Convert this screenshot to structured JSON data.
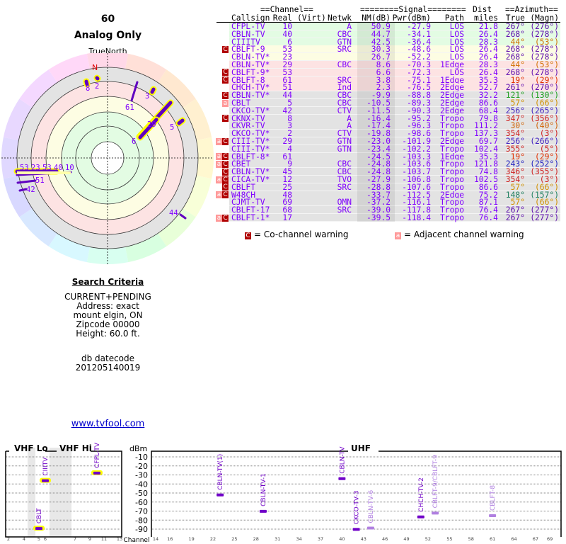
{
  "header": {
    "title": "60",
    "subtitle": "Analog Only",
    "truenorth": "TrueNorth",
    "north": "N"
  },
  "search": {
    "heading": "Search Criteria",
    "lines": [
      "CURRENT+PENDING",
      "Address: exact",
      "mount elgin, ON",
      "Zipcode 00000",
      "Height: 60.0 ft."
    ],
    "db_label": "db datecode",
    "db_value": "201205140019"
  },
  "link": "www.tvfool.com",
  "table": {
    "group_headers": {
      "channel": "==Channel==",
      "signal": "========Signal========",
      "dist": "Dist",
      "azimuth": "==Azimuth=="
    },
    "columns": [
      "Callsign",
      "Real",
      "(Virt)",
      "Netwk",
      "NM(dB)",
      "Pwr(dBm)",
      "Path",
      "miles",
      "True",
      "(Magn)"
    ],
    "rows": [
      {
        "call": "CFPL-TV",
        "real": "10",
        "net": "A",
        "nm": "50.9",
        "pwr": "-27.9",
        "path": "LOS",
        "dist": "21.8",
        "true": "267°",
        "magn": "(276°)",
        "band": "green",
        "az": "#6010b0",
        "warn": ""
      },
      {
        "call": "CBLN-TV",
        "real": "40",
        "net": "CBC",
        "nm": "44.7",
        "pwr": "-34.1",
        "path": "LOS",
        "dist": "26.4",
        "true": "268°",
        "magn": "(278°)",
        "band": "green",
        "az": "#6010b0",
        "warn": ""
      },
      {
        "call": "CIIITV",
        "real": "6",
        "net": "GTN",
        "nm": "42.5",
        "pwr": "-36.4",
        "path": "LOS",
        "dist": "28.3",
        "true": "44°",
        "magn": "(53°)",
        "band": "green",
        "az": "#d07000",
        "warn": ""
      },
      {
        "call": "CBLFT-9",
        "real": "53",
        "net": "SRC",
        "nm": "30.3",
        "pwr": "-48.6",
        "path": "LOS",
        "dist": "26.4",
        "true": "268°",
        "magn": "(278°)",
        "band": "yellow",
        "az": "#6010b0",
        "warn": "C"
      },
      {
        "call": "CBLN-TV*",
        "real": "23",
        "net": "",
        "nm": "26.7",
        "pwr": "-52.2",
        "path": "LOS",
        "dist": "26.4",
        "true": "268°",
        "magn": "(278°)",
        "band": "yellow",
        "az": "#6010b0",
        "warn": ""
      },
      {
        "call": "CBLN-TV*",
        "real": "29",
        "net": "CBC",
        "nm": "8.6",
        "pwr": "-70.3",
        "path": "1Edge",
        "dist": "28.3",
        "true": "44°",
        "magn": "(53°)",
        "band": "pink",
        "az": "#d07000",
        "warn": ""
      },
      {
        "call": "CBLFT-9*",
        "real": "53",
        "net": "",
        "nm": "6.6",
        "pwr": "-72.3",
        "path": "LOS",
        "dist": "26.4",
        "true": "268°",
        "magn": "(278°)",
        "band": "pink",
        "az": "#6010b0",
        "warn": "C"
      },
      {
        "call": "CBLFT-8",
        "real": "61",
        "net": "SRC",
        "nm": "3.8",
        "pwr": "-75.1",
        "path": "1Edge",
        "dist": "35.3",
        "true": "19°",
        "magn": "(29°)",
        "band": "pink",
        "az": "#e03000",
        "warn": "C"
      },
      {
        "call": "CHCH-TV*",
        "real": "51",
        "net": "Ind",
        "nm": "2.3",
        "pwr": "-76.5",
        "path": "2Edge",
        "dist": "52.7",
        "true": "261°",
        "magn": "(270°)",
        "band": "pink",
        "az": "#6010b0",
        "warn": ""
      },
      {
        "call": "CBLN-TV*",
        "real": "44",
        "net": "CBC",
        "nm": "-9.9",
        "pwr": "-88.8",
        "path": "2Edge",
        "dist": "32.2",
        "true": "121°",
        "magn": "(130°)",
        "band": "grey",
        "az": "#20a020",
        "warn": "C"
      },
      {
        "call": "CBLT",
        "real": "5",
        "net": "CBC",
        "nm": "-10.5",
        "pwr": "-89.3",
        "path": "2Edge",
        "dist": "86.6",
        "true": "57°",
        "magn": "(66°)",
        "band": "grey",
        "az": "#d09000",
        "warn": "a"
      },
      {
        "call": "CKCO-TV*",
        "real": "42",
        "net": "CTV",
        "nm": "-11.5",
        "pwr": "-90.3",
        "path": "2Edge",
        "dist": "68.4",
        "true": "256°",
        "magn": "(265°)",
        "band": "grey",
        "az": "#4020c0",
        "warn": ""
      },
      {
        "call": "CKNX-TV",
        "real": "8",
        "net": "A",
        "nm": "-16.4",
        "pwr": "-95.2",
        "path": "Tropo",
        "dist": "79.8",
        "true": "347°",
        "magn": "(356°)",
        "band": "grey",
        "az": "#d02020",
        "warn": "C"
      },
      {
        "call": "CKVR-TV",
        "real": "3",
        "net": "A",
        "nm": "-17.4",
        "pwr": "-96.3",
        "path": "Tropo",
        "dist": "111.2",
        "true": "30°",
        "magn": "(40°)",
        "band": "grey",
        "az": "#d06000",
        "warn": ""
      },
      {
        "call": "CKCO-TV*",
        "real": "2",
        "net": "CTV",
        "nm": "-19.8",
        "pwr": "-98.6",
        "path": "Tropo",
        "dist": "137.3",
        "true": "354°",
        "magn": "(3°)",
        "band": "grey",
        "az": "#d02020",
        "warn": ""
      },
      {
        "call": "CIII-TV*",
        "real": "29",
        "net": "GTN",
        "nm": "-23.0",
        "pwr": "-101.9",
        "path": "2Edge",
        "dist": "69.7",
        "true": "256°",
        "magn": "(266°)",
        "band": "grey",
        "az": "#4020c0",
        "warn": "aC"
      },
      {
        "call": "CIII-TV*",
        "real": "4",
        "net": "GTN",
        "nm": "-23.4",
        "pwr": "-102.2",
        "path": "Tropo",
        "dist": "102.4",
        "true": "355°",
        "magn": "(5°)",
        "band": "grey",
        "az": "#d02020",
        "warn": ""
      },
      {
        "call": "CBLFT-8*",
        "real": "61",
        "net": "",
        "nm": "-24.5",
        "pwr": "-103.3",
        "path": "1Edge",
        "dist": "35.3",
        "true": "19°",
        "magn": "(29°)",
        "band": "grey",
        "az": "#e03000",
        "warn": "aC"
      },
      {
        "call": "CBET",
        "real": "9",
        "net": "CBC",
        "nm": "-24.8",
        "pwr": "-103.6",
        "path": "Tropo",
        "dist": "121.8",
        "true": "243°",
        "magn": "(252°)",
        "band": "grey",
        "az": "#2020c0",
        "warn": "aC"
      },
      {
        "call": "CBLN-TV*",
        "real": "45",
        "net": "CBC",
        "nm": "-24.8",
        "pwr": "-103.7",
        "path": "Tropo",
        "dist": "74.8",
        "true": "346°",
        "magn": "(355°)",
        "band": "grey",
        "az": "#d02020",
        "warn": "C"
      },
      {
        "call": "CICA-TV*",
        "real": "12",
        "net": "TVO",
        "nm": "-27.9",
        "pwr": "-106.8",
        "path": "Tropo",
        "dist": "102.5",
        "true": "354°",
        "magn": "(3°)",
        "band": "grey",
        "az": "#d02020",
        "warn": "aC"
      },
      {
        "call": "CBLFT",
        "real": "25",
        "net": "SRC",
        "nm": "-28.8",
        "pwr": "-107.6",
        "path": "Tropo",
        "dist": "86.6",
        "true": "57°",
        "magn": "(66°)",
        "band": "grey",
        "az": "#d09000",
        "warn": "C"
      },
      {
        "call": "W48CH",
        "real": "48",
        "net": "",
        "nm": "-33.7",
        "pwr": "-112.5",
        "path": "2Edge",
        "dist": "75.2",
        "true": "148°",
        "magn": "(157°)",
        "band": "grey",
        "az": "#208060",
        "warn": "aC"
      },
      {
        "call": "CJMT-TV",
        "real": "69",
        "net": "OMN",
        "nm": "-37.2",
        "pwr": "-116.1",
        "path": "Tropo",
        "dist": "87.1",
        "true": "57°",
        "magn": "(66°)",
        "band": "grey",
        "az": "#d09000",
        "warn": ""
      },
      {
        "call": "CBLFT-17",
        "real": "68",
        "net": "SRC",
        "nm": "-39.0",
        "pwr": "-117.8",
        "path": "Tropo",
        "dist": "76.4",
        "true": "267°",
        "magn": "(277°)",
        "band": "grey",
        "az": "#6010b0",
        "warn": ""
      },
      {
        "call": "CBLFT-1*",
        "real": "17",
        "net": "",
        "nm": "-39.5",
        "pwr": "-118.4",
        "path": "Tropo",
        "dist": "76.4",
        "true": "267°",
        "magn": "(277°)",
        "band": "grey",
        "az": "#6010b0",
        "warn": "aC"
      }
    ],
    "legend": {
      "co_badge": "C",
      "co": "= Co-channel warning",
      "adj_badge": "a",
      "adj": "= Adjacent channel warning"
    }
  },
  "polar": {
    "labels": [
      "8",
      "2",
      "61",
      "3",
      "29",
      "5",
      "6",
      "53",
      "23",
      "53",
      "40",
      "10",
      "51",
      "42",
      "44"
    ]
  },
  "spectrum": {
    "sections": {
      "vhf_lo": "VHF Lo",
      "vhf_hi": "VHF Hi",
      "uhf": "UHF"
    },
    "unit": "dBm",
    "axis_label": "Channel",
    "dbm_ticks": [
      "-10",
      "-20",
      "-30",
      "-40",
      "-50",
      "-60",
      "-70",
      "-80",
      "-90"
    ],
    "vhf_channels": [
      "2",
      "4",
      "5",
      "6",
      "7",
      "9",
      "11",
      "13"
    ],
    "uhf_channels": [
      "14",
      "16",
      "19",
      "22",
      "25",
      "28",
      "31",
      "34",
      "37",
      "40",
      "43",
      "46",
      "49",
      "52",
      "55",
      "58",
      "61",
      "64",
      "67",
      "69"
    ],
    "stations": [
      {
        "label": "CBLT",
        "ch": 5,
        "dbm": -89.3,
        "faded": false,
        "hl": true
      },
      {
        "label": "CIIITV",
        "ch": 6,
        "dbm": -36.4,
        "faded": false,
        "hl": true
      },
      {
        "label": "CFPL-TV",
        "ch": 10,
        "dbm": -27.9,
        "faded": false,
        "hl": true
      },
      {
        "label": "CBLN-TV(1)",
        "ch": 23,
        "dbm": -52.2,
        "faded": false,
        "hl": false
      },
      {
        "label": "CBLN-TV-1",
        "ch": 29,
        "dbm": -70.3,
        "faded": false,
        "hl": false
      },
      {
        "label": "CBLN-TV",
        "ch": 40,
        "dbm": -34.1,
        "faded": false,
        "hl": false
      },
      {
        "label": "CKCO-TV-3",
        "ch": 42,
        "dbm": -90.3,
        "faded": false,
        "hl": false
      },
      {
        "label": "CBLN-TV-6",
        "ch": 44,
        "dbm": -88.8,
        "faded": true,
        "hl": false
      },
      {
        "label": "CHCH-TV-2",
        "ch": 51,
        "dbm": -76.5,
        "faded": false,
        "hl": false
      },
      {
        "label": "CBLFT-9/CBLFT-9",
        "ch": 53,
        "dbm": -72.3,
        "faded": true,
        "hl": false
      },
      {
        "label": "CBLFT-8",
        "ch": 61,
        "dbm": -75.1,
        "faded": true,
        "hl": false
      }
    ]
  }
}
